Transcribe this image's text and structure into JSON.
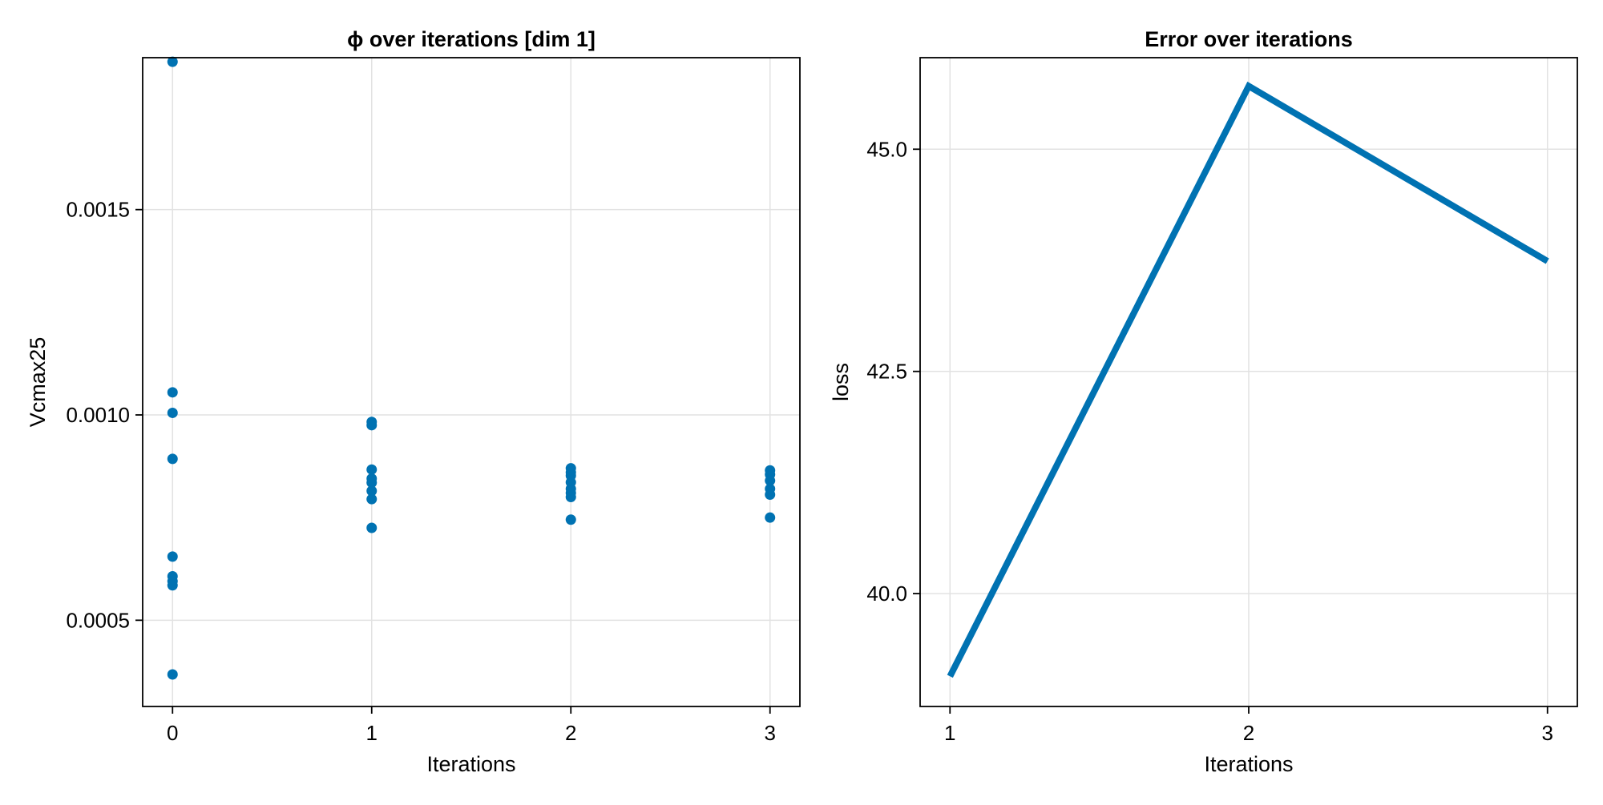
{
  "chart_data": [
    {
      "type": "scatter",
      "title": "ϕ over iterations [dim 1]",
      "xlabel": "Iterations",
      "ylabel": "Vcmax25",
      "xlim": [
        -0.15,
        3.15
      ],
      "ylim": [
        0.00029,
        0.00187
      ],
      "xticks": [
        0,
        1,
        2,
        3
      ],
      "xtick_labels": [
        "0",
        "1",
        "2",
        "3"
      ],
      "yticks": [
        0.0005,
        0.001,
        0.0015
      ],
      "ytick_labels": [
        "0.0005",
        "0.0010",
        "0.0015"
      ],
      "grid": true,
      "color": "#0072b2",
      "points": [
        {
          "x": 0,
          "y": 0.00186
        },
        {
          "x": 0,
          "y": 0.001055
        },
        {
          "x": 0,
          "y": 0.001005
        },
        {
          "x": 0,
          "y": 0.000893
        },
        {
          "x": 0,
          "y": 0.000655
        },
        {
          "x": 0,
          "y": 0.000607
        },
        {
          "x": 0,
          "y": 0.000595
        },
        {
          "x": 0,
          "y": 0.000585
        },
        {
          "x": 0,
          "y": 0.000368
        },
        {
          "x": 1,
          "y": 0.000983
        },
        {
          "x": 1,
          "y": 0.000975
        },
        {
          "x": 1,
          "y": 0.000867
        },
        {
          "x": 1,
          "y": 0.000845
        },
        {
          "x": 1,
          "y": 0.000835
        },
        {
          "x": 1,
          "y": 0.000815
        },
        {
          "x": 1,
          "y": 0.000795
        },
        {
          "x": 1,
          "y": 0.000725
        },
        {
          "x": 2,
          "y": 0.00087
        },
        {
          "x": 2,
          "y": 0.00086
        },
        {
          "x": 2,
          "y": 0.000852
        },
        {
          "x": 2,
          "y": 0.000836
        },
        {
          "x": 2,
          "y": 0.00082
        },
        {
          "x": 2,
          "y": 0.00081
        },
        {
          "x": 2,
          "y": 0.0008
        },
        {
          "x": 2,
          "y": 0.000745
        },
        {
          "x": 3,
          "y": 0.000865
        },
        {
          "x": 3,
          "y": 0.000855
        },
        {
          "x": 3,
          "y": 0.00084
        },
        {
          "x": 3,
          "y": 0.00082
        },
        {
          "x": 3,
          "y": 0.000806
        },
        {
          "x": 3,
          "y": 0.00075
        }
      ]
    },
    {
      "type": "line",
      "title": "Error over iterations",
      "xlabel": "Iterations",
      "ylabel": "loss",
      "xlim": [
        0.9,
        3.1
      ],
      "ylim": [
        38.73,
        46.03
      ],
      "xticks": [
        1,
        2,
        3
      ],
      "xtick_labels": [
        "1",
        "2",
        "3"
      ],
      "yticks": [
        40.0,
        42.5,
        45.0
      ],
      "ytick_labels": [
        "40.0",
        "42.5",
        "45.0"
      ],
      "grid": true,
      "color": "#0072b2",
      "series": [
        {
          "x": [
            1,
            2,
            3
          ],
          "values": [
            39.07,
            45.71,
            43.74
          ]
        }
      ]
    }
  ]
}
